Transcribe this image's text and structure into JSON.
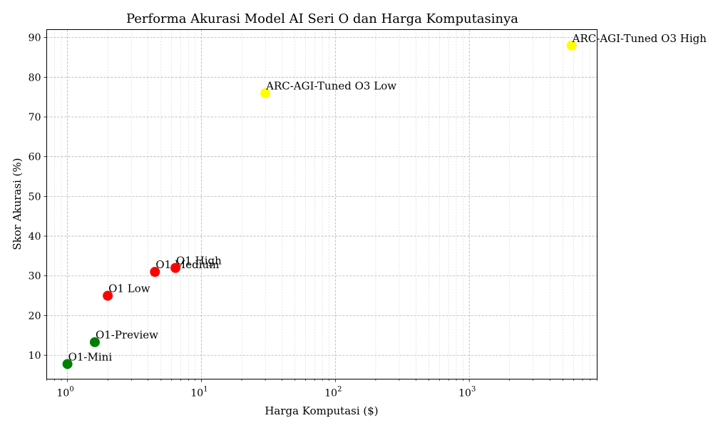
{
  "chart_data": {
    "type": "scatter",
    "title": "Performa Akurasi Model AI Seri O dan Harga Komputasinya",
    "xlabel": "Harga Komputasi ($)",
    "ylabel": "Skor Akurasi (%)",
    "xscale": "log",
    "xlim": [
      0.7,
      9000
    ],
    "ylim": [
      4,
      92
    ],
    "yticks": [
      10,
      20,
      30,
      40,
      50,
      60,
      70,
      80,
      90
    ],
    "xticks": [
      1,
      10,
      100,
      1000
    ],
    "xtick_labels": [
      {
        "base": "10",
        "exp": "0"
      },
      {
        "base": "10",
        "exp": "1"
      },
      {
        "base": "10",
        "exp": "2"
      },
      {
        "base": "10",
        "exp": "3"
      }
    ],
    "grid": true,
    "points": [
      {
        "label": "O1-Mini",
        "x": 1.0,
        "y": 7.8,
        "color": "#008000"
      },
      {
        "label": "O1-Preview",
        "x": 1.6,
        "y": 13.3,
        "color": "#008000"
      },
      {
        "label": "O1 Low",
        "x": 2.0,
        "y": 25.0,
        "color": "#ff0000"
      },
      {
        "label": "O1 Medium",
        "x": 4.5,
        "y": 31.0,
        "color": "#ff0000"
      },
      {
        "label": "O1 High",
        "x": 6.4,
        "y": 32.0,
        "color": "#ff0000"
      },
      {
        "label": "ARC-AGI-Tuned O3 Low",
        "x": 30,
        "y": 76.0,
        "color": "#ffff00"
      },
      {
        "label": "ARC-AGI-Tuned O3 High",
        "x": 5800,
        "y": 88.0,
        "color": "#ffff00"
      }
    ]
  }
}
